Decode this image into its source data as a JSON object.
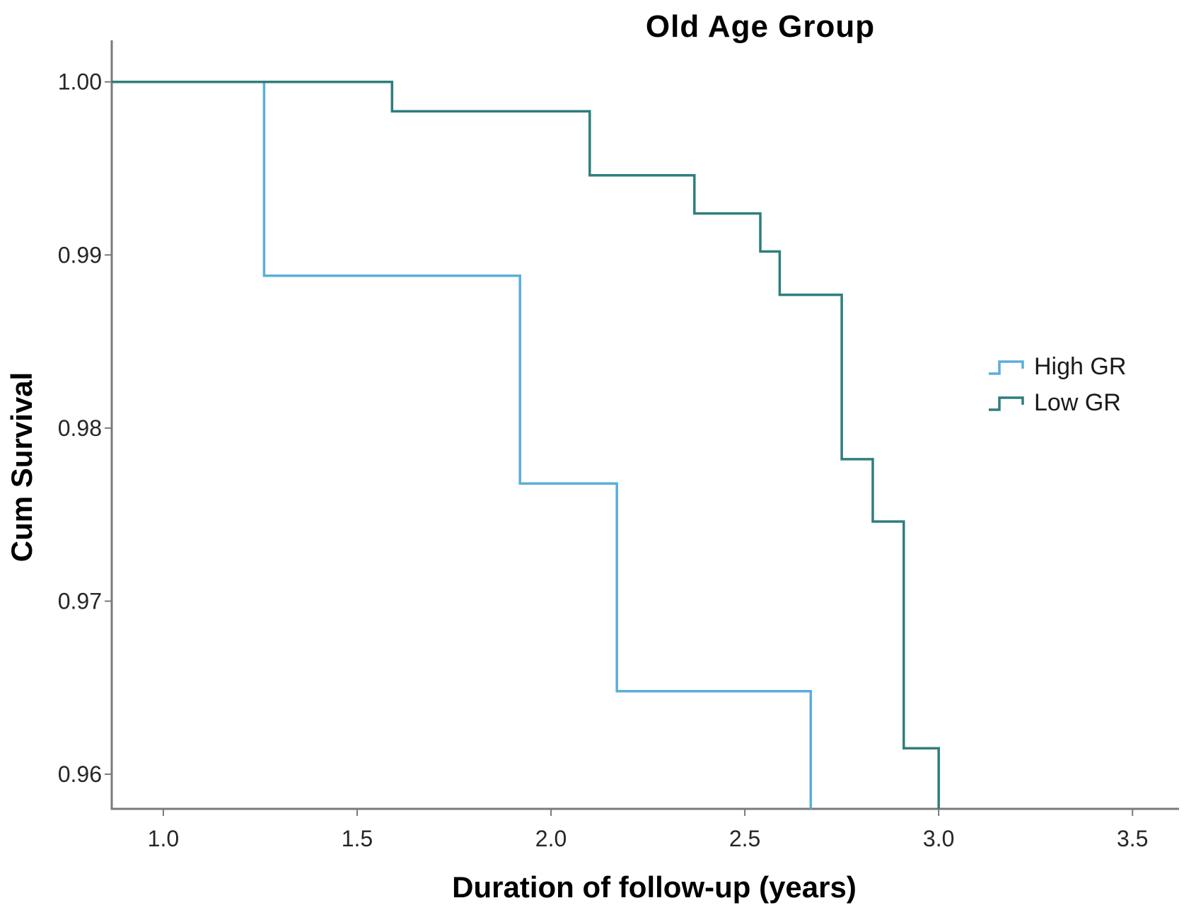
{
  "chart": {
    "title": "Old Age Group",
    "x_axis": {
      "label": "Duration of follow-up (years)",
      "tick_labels": [
        "1.0",
        "1.5",
        "2.0",
        "2.5",
        "3.0",
        "3.5"
      ],
      "tick_values": [
        1.0,
        1.5,
        2.0,
        2.5,
        3.0,
        3.5
      ]
    },
    "y_axis": {
      "label": "Cum Survival",
      "tick_labels": [
        "1.00",
        "0.99",
        "0.98",
        "0.97",
        "0.96"
      ],
      "tick_values": [
        1.0,
        0.99,
        0.98,
        0.97,
        0.96
      ]
    },
    "legend": {
      "items": [
        {
          "label": "High GR",
          "color": "#5aaedd"
        },
        {
          "label": "Low GR",
          "color": "#2f7e7c"
        }
      ]
    },
    "colors": {
      "axis": "#7a7a7a",
      "tick_text": "#262626",
      "title_text": "#000000"
    }
  },
  "chart_data": {
    "type": "line",
    "subtype": "kaplan-meier-step",
    "title": "Old Age Group",
    "xlabel": "Duration of follow-up (years)",
    "ylabel": "Cum Survival",
    "xlim": [
      0.867,
      3.62
    ],
    "ylim": [
      0.958,
      1.0024
    ],
    "grid": false,
    "legend_position": "right",
    "x_ticks": [
      1.0,
      1.5,
      2.0,
      2.5,
      3.0,
      3.5
    ],
    "y_ticks": [
      1.0,
      0.99,
      0.98,
      0.97,
      0.96
    ],
    "series": [
      {
        "name": "High GR",
        "color": "#5aaedd",
        "step": "post",
        "points": [
          [
            0.87,
            1.0
          ],
          [
            1.26,
            0.9888
          ],
          [
            1.92,
            0.9768
          ],
          [
            2.17,
            0.9648
          ],
          [
            2.67,
            0.952
          ]
        ]
      },
      {
        "name": "Low GR",
        "color": "#2f7e7c",
        "step": "post",
        "points": [
          [
            0.87,
            1.0
          ],
          [
            1.59,
            0.9983
          ],
          [
            2.1,
            0.9946
          ],
          [
            2.37,
            0.9924
          ],
          [
            2.54,
            0.9902
          ],
          [
            2.59,
            0.9877
          ],
          [
            2.75,
            0.9782
          ],
          [
            2.83,
            0.9746
          ],
          [
            2.91,
            0.9615
          ],
          [
            3.0,
            0.952
          ]
        ]
      }
    ]
  }
}
